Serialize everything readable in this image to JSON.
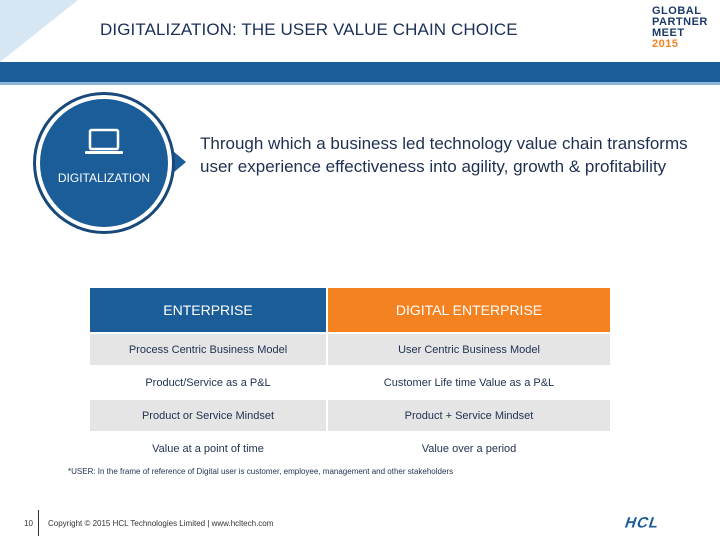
{
  "header": {
    "title": "DIGITALIZATION: THE USER VALUE CHAIN CHOICE",
    "logo": {
      "line1": "GLOBAL",
      "line2": "PARTNER",
      "line3": "MEET",
      "year": "2015"
    }
  },
  "callout": {
    "label": "DIGITALIZATION",
    "icon": "laptop-icon",
    "statement": "Through which a business led technology value chain transforms user experience effectiveness  into agility, growth & profitability"
  },
  "table": {
    "headers": [
      "ENTERPRISE",
      "DIGITAL ENTERPRISE"
    ],
    "rows": [
      [
        "Process Centric Business Model",
        "User Centric Business Model"
      ],
      [
        "Product/Service as a P&L",
        "Customer Life time Value as a P&L"
      ],
      [
        "Product  or Service Mindset",
        "Product + Service Mindset"
      ],
      [
        "Value at a point of time",
        "Value over a period"
      ]
    ]
  },
  "footnote": "*USER: In the frame of reference of Digital user is customer,  employee, management and other stakeholders",
  "footer": {
    "page_number": "10",
    "copyright": "Copyright © 2015 HCL Technologies Limited  |  www.hcltech.com",
    "brand": "HCL"
  },
  "colors": {
    "primary_blue": "#1a5d99",
    "accent_orange": "#f58220",
    "row_shade": "#e5e5e5"
  }
}
